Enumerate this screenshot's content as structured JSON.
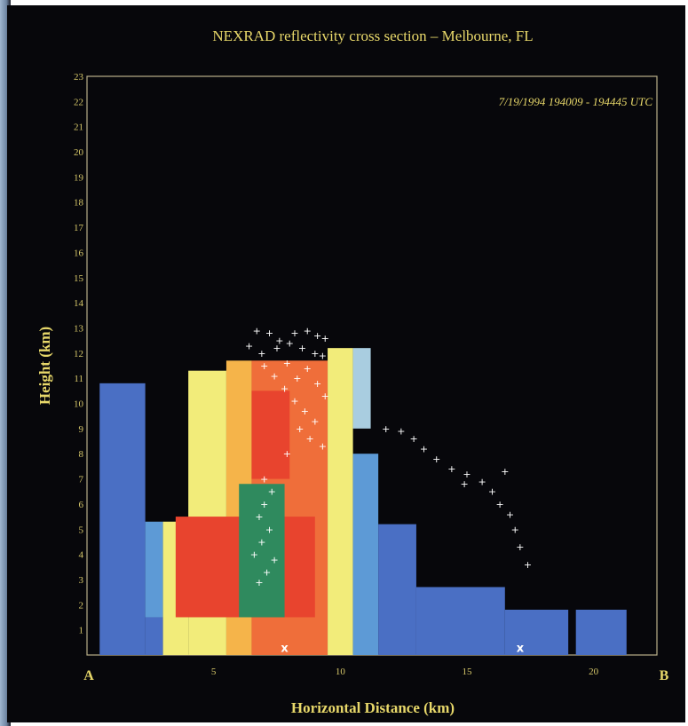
{
  "chart_data": {
    "type": "heatmap",
    "title": "NEXRAD reflectivity cross section – Melbourne, FL",
    "timestamp": "7/19/1994  194009 - 194445 UTC",
    "xlabel": "Horizontal Distance (km)",
    "ylabel": "Height (km)",
    "xlim": [
      0,
      22.5
    ],
    "ylim": [
      0,
      23
    ],
    "x_ticks": [
      "5",
      "10",
      "15",
      "20"
    ],
    "y_ticks": [
      "1",
      "2",
      "3",
      "4",
      "5",
      "6",
      "7",
      "8",
      "9",
      "10",
      "11",
      "12",
      "13",
      "14",
      "15",
      "16",
      "17",
      "18",
      "19",
      "20",
      "21",
      "22",
      "23"
    ],
    "endpoints": {
      "left": "A",
      "right": "B"
    },
    "reflectivity_colors": [
      "#4a6fc4",
      "#5d9ad6",
      "#a9cde0",
      "#f2ec7a",
      "#f5b44a",
      "#ef6e3a",
      "#e8442e",
      "#2f8a5e"
    ],
    "reflectivity_regions": [
      {
        "x": [
          0.5,
          2.3
        ],
        "y": [
          0,
          10.8
        ],
        "level": 0
      },
      {
        "x": [
          2.3,
          3.0
        ],
        "y": [
          0,
          1.5
        ],
        "level": 0
      },
      {
        "x": [
          2.3,
          3.0
        ],
        "y": [
          1.5,
          5.3
        ],
        "level": 1
      },
      {
        "x": [
          3.0,
          4.0
        ],
        "y": [
          0,
          5.3
        ],
        "level": 3
      },
      {
        "x": [
          4.0,
          5.5
        ],
        "y": [
          0,
          11.3
        ],
        "level": 3
      },
      {
        "x": [
          5.5,
          6.5
        ],
        "y": [
          0,
          11.7
        ],
        "level": 4
      },
      {
        "x": [
          6.5,
          9.5
        ],
        "y": [
          0,
          11.7
        ],
        "level": 5
      },
      {
        "x": [
          9.5,
          10.5
        ],
        "y": [
          0,
          12.2
        ],
        "level": 3
      },
      {
        "x": [
          10.5,
          11.5
        ],
        "y": [
          0,
          8.0
        ],
        "level": 1
      },
      {
        "x": [
          11.5,
          13.0
        ],
        "y": [
          0,
          5.2
        ],
        "level": 0
      },
      {
        "x": [
          13.0,
          16.5
        ],
        "y": [
          0,
          2.7
        ],
        "level": 0
      },
      {
        "x": [
          16.5,
          19.0
        ],
        "y": [
          0,
          1.8
        ],
        "level": 0
      },
      {
        "x": [
          19.3,
          21.3
        ],
        "y": [
          0,
          1.8
        ],
        "level": 0
      },
      {
        "x": [
          3.5,
          9.0
        ],
        "y": [
          1.5,
          5.5
        ],
        "level": 6
      },
      {
        "x": [
          6.5,
          8.0
        ],
        "y": [
          7.0,
          10.5
        ],
        "level": 6
      },
      {
        "x": [
          6.0,
          7.8
        ],
        "y": [
          1.5,
          6.8
        ],
        "level": 7
      },
      {
        "x": [
          10.5,
          11.2
        ],
        "y": [
          9.0,
          12.2
        ],
        "level": 2
      }
    ],
    "lightning_points": [
      [
        6.7,
        12.9
      ],
      [
        7.2,
        12.8
      ],
      [
        7.6,
        12.5
      ],
      [
        8.2,
        12.8
      ],
      [
        8.7,
        12.9
      ],
      [
        9.1,
        12.7
      ],
      [
        9.4,
        12.6
      ],
      [
        6.4,
        12.3
      ],
      [
        6.9,
        12.0
      ],
      [
        7.5,
        12.2
      ],
      [
        8.0,
        12.4
      ],
      [
        8.5,
        12.2
      ],
      [
        9.0,
        12.0
      ],
      [
        9.3,
        11.9
      ],
      [
        7.0,
        11.5
      ],
      [
        7.4,
        11.1
      ],
      [
        7.9,
        11.6
      ],
      [
        8.3,
        11.0
      ],
      [
        8.7,
        11.4
      ],
      [
        9.1,
        10.8
      ],
      [
        9.4,
        10.3
      ],
      [
        7.8,
        10.6
      ],
      [
        8.2,
        10.1
      ],
      [
        8.6,
        9.7
      ],
      [
        9.0,
        9.3
      ],
      [
        8.4,
        9.0
      ],
      [
        8.8,
        8.6
      ],
      [
        9.3,
        8.3
      ],
      [
        7.9,
        8.0
      ],
      [
        7.0,
        7.0
      ],
      [
        7.3,
        6.5
      ],
      [
        7.0,
        6.0
      ],
      [
        6.8,
        5.5
      ],
      [
        7.2,
        5.0
      ],
      [
        6.9,
        4.5
      ],
      [
        6.6,
        4.0
      ],
      [
        7.4,
        3.8
      ],
      [
        7.1,
        3.3
      ],
      [
        6.8,
        2.9
      ],
      [
        11.8,
        9.0
      ],
      [
        12.4,
        8.9
      ],
      [
        12.9,
        8.6
      ],
      [
        13.3,
        8.2
      ],
      [
        13.8,
        7.8
      ],
      [
        14.4,
        7.4
      ],
      [
        15.0,
        7.2
      ],
      [
        15.6,
        6.9
      ],
      [
        16.0,
        6.5
      ],
      [
        16.3,
        6.0
      ],
      [
        16.7,
        5.6
      ],
      [
        16.9,
        5.0
      ],
      [
        17.1,
        4.3
      ],
      [
        17.4,
        3.6
      ],
      [
        16.5,
        7.3
      ],
      [
        14.9,
        6.8
      ]
    ],
    "markers": [
      {
        "x": 7.8,
        "y": 0.2,
        "label": "x"
      },
      {
        "x": 17.1,
        "y": 0.2,
        "label": "x"
      }
    ]
  }
}
